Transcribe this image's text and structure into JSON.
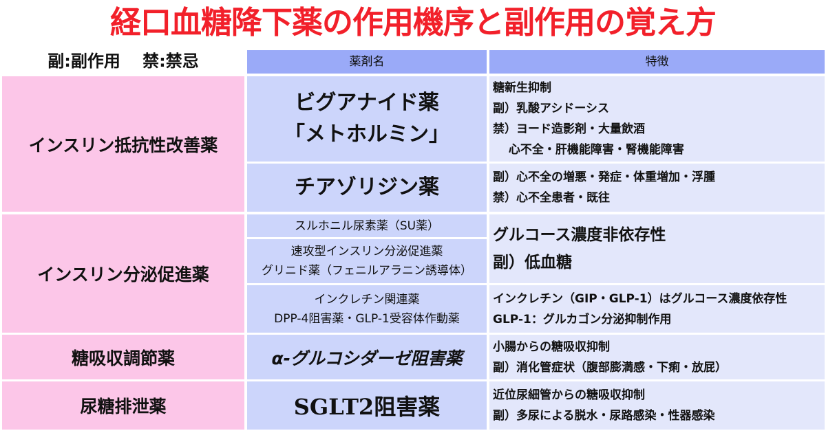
{
  "title": "経口血糖降下薬の作用機序と副作用の覚え方",
  "legend": "副:副作用　 禁:禁忌",
  "header": {
    "drug": "薬剤名",
    "feature": "特徴"
  },
  "groups": [
    {
      "name": "インスリン抵抗性改善薬"
    },
    {
      "name": "インスリン分泌促進薬"
    },
    {
      "name": "糖吸収調節薬"
    },
    {
      "name": "尿糖排泄薬"
    }
  ],
  "drugs": {
    "biguanide": {
      "l1": "ビグアナイド薬",
      "l2": "「メトホルミン」",
      "f": [
        "糖新生抑制",
        "副）乳酸アシドーシス",
        "禁）ヨード造影剤・大量飲酒",
        "　 心不全・肝機能障害・腎機能障害"
      ]
    },
    "tzd": {
      "l1": "チアゾリジン薬",
      "f": [
        "副）心不全の増悪・発症・体重増加・浮腫",
        "禁）心不全患者・既往"
      ]
    },
    "su": {
      "l1": "スルホニル尿素薬（SU薬）"
    },
    "glinide": {
      "l1": "速攻型インスリン分泌促進薬",
      "l2": "グリニド薬（フェニルアラニン誘導体）"
    },
    "su_glinide_feature": [
      "グルコース濃度非依存性",
      "副）低血糖"
    ],
    "incretin": {
      "l1": "インクレチン関連薬",
      "l2": "DPP-4阻害薬・GLP-1受容体作動薬",
      "f": [
        "インクレチン（GIP・GLP-1）はグルコース濃度依存性",
        "GLP-1：グルカゴン分泌抑制作用"
      ]
    },
    "agi": {
      "l1": "α-グルコシダーゼ阻害薬",
      "f": [
        "小腸からの糖吸収抑制",
        "副）消化管症状（腹部膨満感・下痢・放屁）"
      ]
    },
    "sglt2": {
      "l1": "SGLT2阻害薬",
      "f": [
        "近位尿細管からの糖吸収抑制",
        "副）多尿による脱水・尿路感染・性器感染"
      ]
    }
  },
  "colors": {
    "title": "#f2202a",
    "header": "#9aaaf8",
    "group": "#fcc6e8",
    "drug": "#ccd5fb",
    "feature": "#e3e7fb"
  }
}
